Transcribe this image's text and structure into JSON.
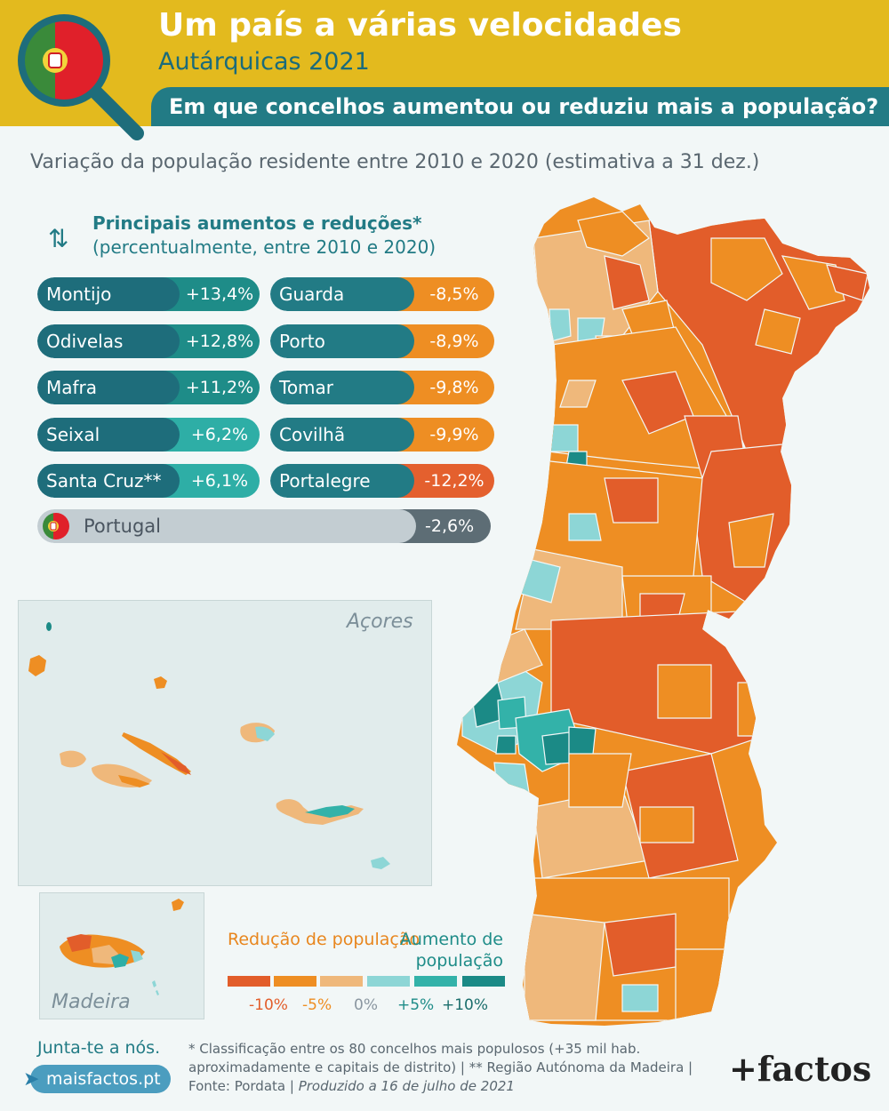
{
  "header": {
    "title": "Um país a várias velocidades",
    "subtitle": "Autárquicas 2021",
    "question": "Em que concelhos aumentou ou reduziu mais a população?"
  },
  "map_subtitle": "Variação da população residente entre 2010 e 2020 (estimativa a 31 dez.)",
  "ranking": {
    "heading": "Principais aumentos e reduções*",
    "heading_note": "(percentualmente, entre 2010 e 2020)",
    "increases": [
      {
        "name": "Montijo",
        "value": "+13,4%",
        "color": "#1e8c88"
      },
      {
        "name": "Odivelas",
        "value": "+12,8%",
        "color": "#1e8c88"
      },
      {
        "name": "Mafra",
        "value": "+11,2%",
        "color": "#1e8c88"
      },
      {
        "name": "Seixal",
        "value": "+6,2%",
        "color": "#2eaea6"
      },
      {
        "name": "Santa Cruz**",
        "value": "+6,1%",
        "color": "#2eaea6"
      }
    ],
    "decreases": [
      {
        "name": "Guarda",
        "value": "-8,5%",
        "color": "#ee8e23"
      },
      {
        "name": "Porto",
        "value": "-8,9%",
        "color": "#ee8e23"
      },
      {
        "name": "Tomar",
        "value": "-9,8%",
        "color": "#ee8e23"
      },
      {
        "name": "Covilhã",
        "value": "-9,9%",
        "color": "#ee8e23"
      },
      {
        "name": "Portalegre",
        "value": "-12,2%",
        "color": "#e4602e"
      }
    ],
    "national": {
      "name": "Portugal",
      "value": "-2,6%"
    }
  },
  "insets": {
    "azores": "Açores",
    "madeira": "Madeira"
  },
  "legend": {
    "reduction_label": "Redução de população",
    "increase_label": "Aumento de população",
    "ticks": [
      "-10%",
      "-5%",
      "0%",
      "+5%",
      "+10%"
    ],
    "colors": [
      "#e25d2a",
      "#ee8e23",
      "#efb87b",
      "#8dd6d6",
      "#33b2a9",
      "#1b8a86"
    ]
  },
  "footer": {
    "join": "Junta-te a nós.",
    "site": "maisfactos.pt",
    "notes": "* Classificação entre os 80 concelhos mais populosos (+35 mil hab. aproximadamente e capitais de distrito) | ** Região Autónoma da Madeira | Fonte: Pordata |",
    "produced": "Produzido a 16 de julho de 2021",
    "brand": "+factos"
  }
}
